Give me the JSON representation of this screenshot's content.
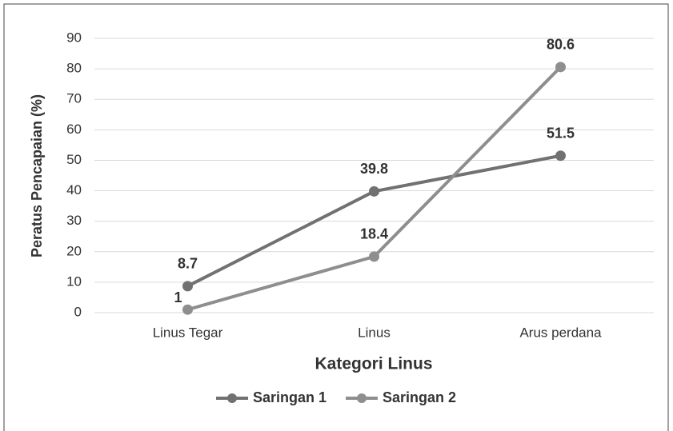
{
  "chart_data": {
    "type": "line",
    "x_label": "Kategori Linus",
    "y_label": "Peratus Pencapaian (%)",
    "categories": [
      "Linus Tegar",
      "Linus",
      "Arus perdana"
    ],
    "series": [
      {
        "name": "Saringan 1",
        "color": "#717171",
        "values": [
          8.7,
          39.8,
          51.5
        ]
      },
      {
        "name": "Saringan 2",
        "color": "#8e8e8e",
        "values": [
          1,
          18.4,
          80.6
        ]
      }
    ],
    "ylim": [
      0,
      90
    ],
    "yticks": [
      0,
      10,
      20,
      30,
      40,
      50,
      60,
      70,
      80,
      90
    ],
    "grid": true,
    "legend": "bottom"
  }
}
